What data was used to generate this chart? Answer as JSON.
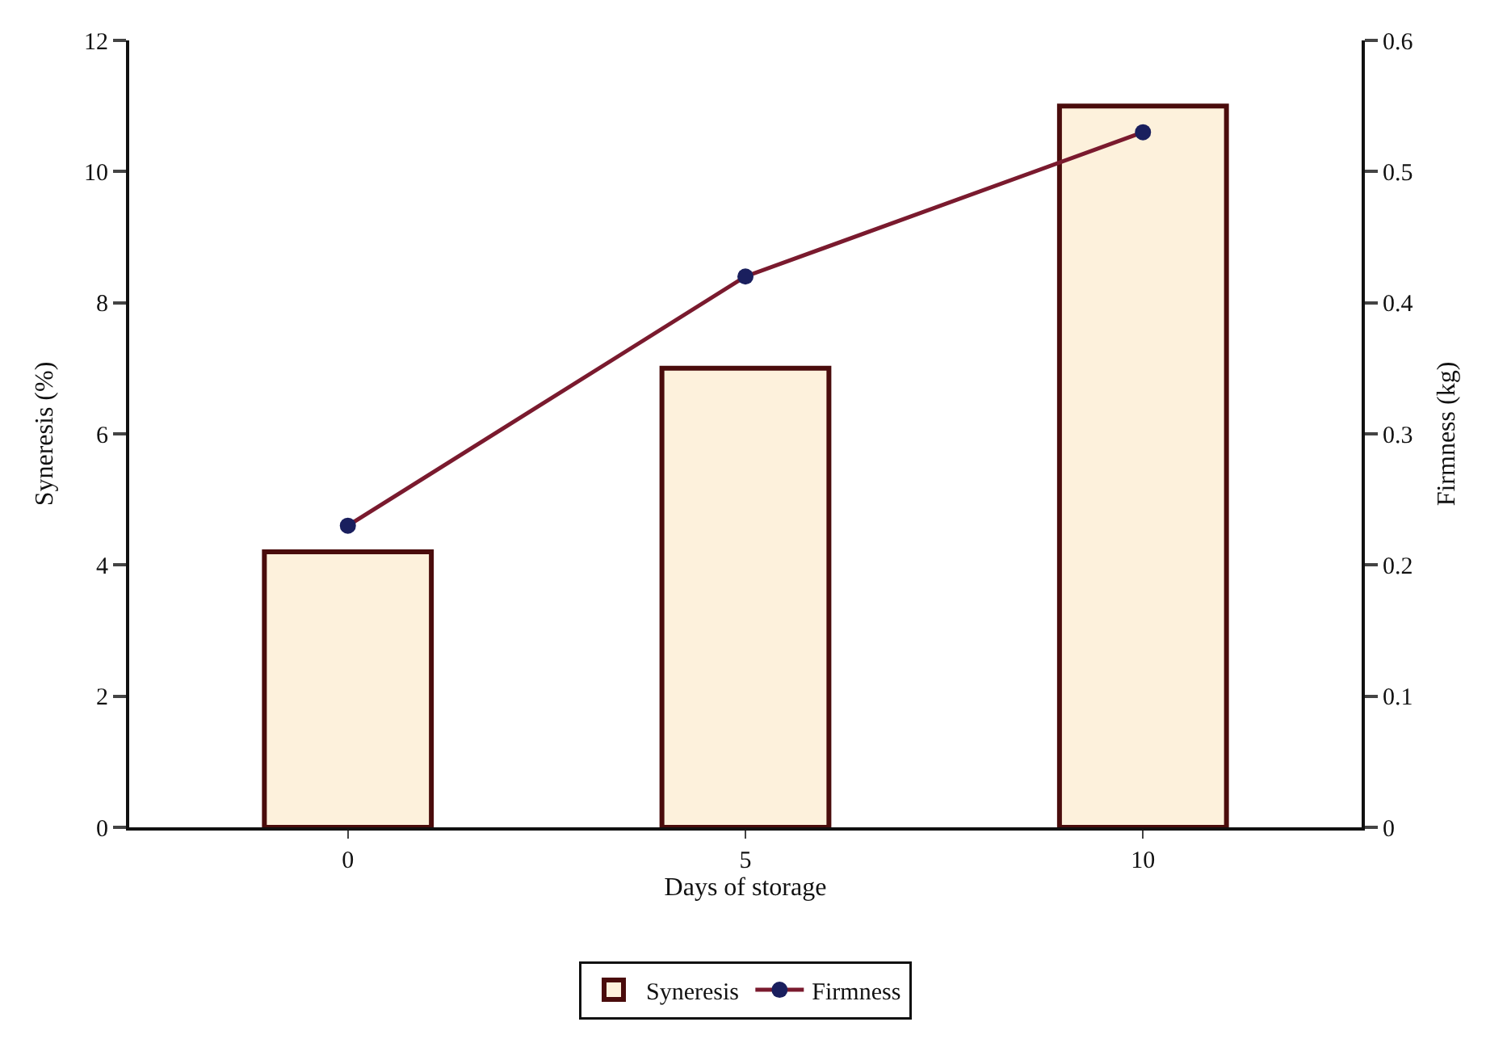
{
  "chart_data": {
    "type": "bar",
    "xlabel": "Days of storage",
    "ylabel": "Syneresis (%)",
    "y2label": "Firmness (kg)",
    "categories": [
      "0",
      "5",
      "10"
    ],
    "series": [
      {
        "name": "Syneresis",
        "color": "#fdf1dc",
        "values": [
          4.2,
          7.0,
          11.0
        ]
      },
      {
        "name": "Firmness",
        "type": "line",
        "axis": "y2",
        "color": "#7a1a2e",
        "marker": "circle",
        "values": [
          0.23,
          0.42,
          0.53
        ]
      }
    ],
    "ylim": [
      0,
      12
    ],
    "yticks": [
      0,
      2,
      4,
      6,
      8,
      10,
      12
    ],
    "y2lim": [
      0,
      0.6
    ],
    "y2ticks": [
      0,
      0.1,
      0.2,
      0.3,
      0.4,
      0.5,
      0.6
    ],
    "legend": "bottom"
  }
}
